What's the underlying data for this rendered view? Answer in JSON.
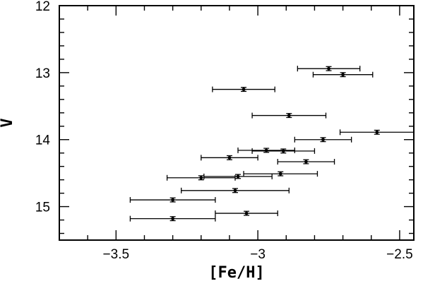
{
  "chart_data": {
    "type": "scatter",
    "title": "",
    "xlabel": "[Fe/H]",
    "ylabel": "V",
    "xlim": [
      -3.7,
      -2.45
    ],
    "ylim": [
      15.5,
      12.0
    ],
    "y_inverted": true,
    "grid": false,
    "x_ticks": [
      {
        "value": -3.5,
        "label": "−3.5"
      },
      {
        "value": -3.0,
        "label": "−3"
      },
      {
        "value": -2.5,
        "label": "−2.5"
      }
    ],
    "y_ticks": [
      {
        "value": 12,
        "label": "12"
      },
      {
        "value": 13,
        "label": "13"
      },
      {
        "value": 14,
        "label": "14"
      },
      {
        "value": 15,
        "label": "15"
      }
    ],
    "points": [
      {
        "x": -2.75,
        "y": 12.94,
        "xerr": 0.11,
        "yerr": 0.03
      },
      {
        "x": -2.7,
        "y": 13.03,
        "xerr": 0.105,
        "yerr": 0.03
      },
      {
        "x": -3.05,
        "y": 13.25,
        "xerr": 0.11,
        "yerr": 0.03
      },
      {
        "x": -2.89,
        "y": 13.64,
        "xerr": 0.13,
        "yerr": 0.03
      },
      {
        "x": -2.58,
        "y": 13.89,
        "xerr": 0.13,
        "yerr": 0.03
      },
      {
        "x": -2.77,
        "y": 14.0,
        "xerr": 0.1,
        "yerr": 0.03
      },
      {
        "x": -2.97,
        "y": 14.16,
        "xerr": 0.1,
        "yerr": 0.03
      },
      {
        "x": -2.91,
        "y": 14.17,
        "xerr": 0.11,
        "yerr": 0.03
      },
      {
        "x": -3.1,
        "y": 14.27,
        "xerr": 0.1,
        "yerr": 0.03
      },
      {
        "x": -2.83,
        "y": 14.33,
        "xerr": 0.1,
        "yerr": 0.03
      },
      {
        "x": -2.92,
        "y": 14.51,
        "xerr": 0.13,
        "yerr": 0.03
      },
      {
        "x": -3.2,
        "y": 14.57,
        "xerr": 0.12,
        "yerr": 0.03
      },
      {
        "x": -3.07,
        "y": 14.55,
        "xerr": 0.12,
        "yerr": 0.03
      },
      {
        "x": -3.08,
        "y": 14.76,
        "xerr": 0.19,
        "yerr": 0.03
      },
      {
        "x": -3.3,
        "y": 14.9,
        "xerr": 0.15,
        "yerr": 0.03
      },
      {
        "x": -3.04,
        "y": 15.1,
        "xerr": 0.11,
        "yerr": 0.03
      },
      {
        "x": -3.3,
        "y": 15.18,
        "xerr": 0.15,
        "yerr": 0.03
      }
    ]
  }
}
